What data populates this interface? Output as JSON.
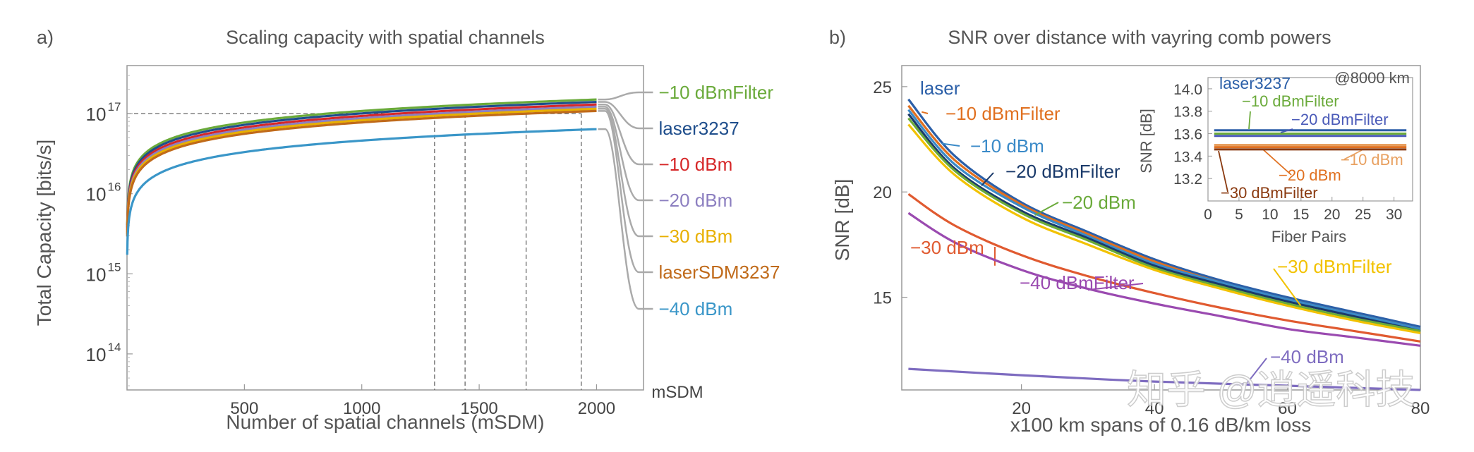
{
  "chart_data": [
    {
      "panel": "a)",
      "type": "line",
      "title": "Scaling capacity with spatial channels",
      "xlabel": "Number of spatial channels (mSDM)",
      "ylabel": "Total Capacity  [bits/s]",
      "xlim": [
        0,
        2200
      ],
      "ylim_log10": [
        13.55,
        17.6
      ],
      "yscale": "log",
      "x_ticks": [
        500,
        1000,
        1500,
        2000
      ],
      "x_tick_labels": [
        "500",
        "1000",
        "1500",
        "2000"
      ],
      "x_extra_label": "mSDM",
      "y_ticks_log10": [
        14,
        15,
        16,
        17
      ],
      "y_tick_labels": [
        {
          "base": "10",
          "exp": "14"
        },
        {
          "base": "10",
          "exp": "15"
        },
        {
          "base": "10",
          "exp": "16"
        },
        {
          "base": "10",
          "exp": "17"
        }
      ],
      "reference_line": {
        "y": 1e+17
      },
      "vertical_markers_x": [
        1310,
        1440,
        1700,
        1935
      ],
      "series": [
        {
          "name": "-10 dBmFilter",
          "label": "−10 dBmFilter",
          "color": "#6aaa3a",
          "capacity_at_2000": 1.5e+17
        },
        {
          "name": "laser3237",
          "label": "laser3237",
          "color": "#1f4e8c",
          "capacity_at_2000": 1.4e+17
        },
        {
          "name": "-10 dBm",
          "label": "−10 dBm",
          "color": "#d62728",
          "capacity_at_2000": 1.3e+17
        },
        {
          "name": "-20 dBm",
          "label": "−20 dBm",
          "color": "#8c7fc0",
          "capacity_at_2000": 1.22e+17
        },
        {
          "name": "-30 dBm",
          "label": "−30 dBm",
          "color": "#e8b000",
          "capacity_at_2000": 1.15e+17
        },
        {
          "name": "laserSDM3237",
          "label": "laserSDM3237",
          "color": "#c06a1a",
          "capacity_at_2000": 1.08e+17
        },
        {
          "name": "-40 dBm",
          "label": "−40 dBm",
          "color": "#3a96c8",
          "capacity_at_2000": 6.4e+16
        }
      ]
    },
    {
      "panel": "b)",
      "type": "line",
      "title": "SNR over distance with vayring comb powers",
      "xlabel": "x100 km spans of 0.16 dB/km loss",
      "ylabel": "SNR [dB]",
      "xlim": [
        2,
        80
      ],
      "ylim": [
        10.6,
        26
      ],
      "x_ticks": [
        20,
        40,
        60,
        80
      ],
      "x_tick_labels": [
        "20",
        "40",
        "60",
        "80"
      ],
      "y_ticks": [
        15,
        20,
        25
      ],
      "y_tick_labels": [
        "15",
        "20",
        "25"
      ],
      "series": [
        {
          "name": "laser",
          "label": "laser",
          "color": "#2b5fa8",
          "x": [
            3,
            10,
            20,
            30,
            40,
            50,
            60,
            70,
            80
          ],
          "y": [
            24.4,
            21.7,
            19.5,
            18.1,
            16.8,
            15.8,
            15.0,
            14.3,
            13.6
          ]
        },
        {
          "name": "-10 dBmFilter",
          "label": "−10 dBmFilter",
          "color": "#e07020",
          "x": [
            3,
            10,
            20,
            30,
            40,
            50,
            60,
            70,
            80
          ],
          "y": [
            24.1,
            21.5,
            19.4,
            18.0,
            16.7,
            15.7,
            14.9,
            14.2,
            13.5
          ]
        },
        {
          "name": "-10 dBm",
          "label": "−10 dBm",
          "color": "#3a8ac8",
          "x": [
            3,
            10,
            20,
            30,
            40,
            50,
            60,
            70,
            80
          ],
          "y": [
            23.9,
            21.3,
            19.3,
            17.9,
            16.6,
            15.7,
            14.9,
            14.2,
            13.5
          ]
        },
        {
          "name": "-20 dBmFilter",
          "label": "−20 dBmFilter",
          "color": "#1a3a6a",
          "x": [
            3,
            10,
            20,
            30,
            40,
            50,
            60,
            70,
            80
          ],
          "y": [
            23.7,
            21.1,
            19.1,
            17.8,
            16.5,
            15.6,
            14.8,
            14.1,
            13.4
          ]
        },
        {
          "name": "-20 dBm",
          "label": "−20 dBm",
          "color": "#6aaa3a",
          "x": [
            3,
            10,
            20,
            30,
            40,
            50,
            60,
            70,
            80
          ],
          "y": [
            23.5,
            21.0,
            19.0,
            17.7,
            16.4,
            15.5,
            14.7,
            14.0,
            13.4
          ]
        },
        {
          "name": "-30 dBmFilter",
          "label": "−30 dBmFilter",
          "color": "#f2c200",
          "x": [
            3,
            10,
            20,
            30,
            40,
            50,
            60,
            70,
            80
          ],
          "y": [
            23.2,
            20.8,
            18.8,
            17.5,
            16.3,
            15.4,
            14.6,
            13.9,
            13.3
          ]
        },
        {
          "name": "-30 dBm",
          "label": "−30 dBm",
          "color": "#e05a30",
          "x": [
            3,
            10,
            20,
            30,
            40,
            50,
            60,
            70,
            80
          ],
          "y": [
            19.9,
            18.4,
            17.0,
            16.0,
            15.2,
            14.5,
            13.9,
            13.4,
            12.9
          ]
        },
        {
          "name": "-40 dBmFilter",
          "label": "−40 dBmFilter",
          "color": "#9a4ab0",
          "x": [
            3,
            10,
            20,
            30,
            40,
            50,
            60,
            70,
            80
          ],
          "y": [
            19.0,
            17.6,
            16.3,
            15.4,
            14.7,
            14.1,
            13.5,
            13.1,
            12.7
          ]
        },
        {
          "name": "-40 dBm",
          "label": "−40 dBm",
          "color": "#7e6cc0",
          "x": [
            3,
            20,
            40,
            60,
            80
          ],
          "y": [
            11.6,
            11.3,
            11.0,
            10.8,
            10.6
          ]
        }
      ],
      "inset": {
        "title": "@8000 km",
        "xlabel": "Fiber Pairs",
        "ylabel": "SNR [dB]",
        "xlim": [
          0,
          33
        ],
        "ylim": [
          13.0,
          14.1
        ],
        "x_ticks": [
          0,
          5,
          10,
          15,
          20,
          25,
          30
        ],
        "x_tick_labels": [
          "0",
          "5",
          "10",
          "15",
          "20",
          "25",
          "30"
        ],
        "y_ticks": [
          13.2,
          13.4,
          13.6,
          13.8,
          14.0
        ],
        "y_tick_labels": [
          "13.2",
          "13.4",
          "13.6",
          "13.8",
          "14.0"
        ],
        "series": [
          {
            "name": "laser3237",
            "label": "laser3237",
            "color": "#2b5fa8",
            "y": 13.63
          },
          {
            "name": "-10 dBmFilter",
            "label": "−10 dBmFilter",
            "color": "#6aaa3a",
            "y": 13.6
          },
          {
            "name": "-20 dBmFilter",
            "label": "−20 dBmFilter",
            "color": "#4a5ab8",
            "y": 13.58
          },
          {
            "name": "-10 dBm",
            "label": "−10 dBm",
            "color": "#e8a060",
            "y": 13.5
          },
          {
            "name": "-20 dBm",
            "label": "−20 dBm",
            "color": "#e07020",
            "y": 13.48
          },
          {
            "name": "-30 dBmFilter",
            "label": "−30 dBmFilter",
            "color": "#8a3a10",
            "y": 13.46
          }
        ]
      }
    }
  ],
  "watermark": "知乎 @逍遥科技"
}
